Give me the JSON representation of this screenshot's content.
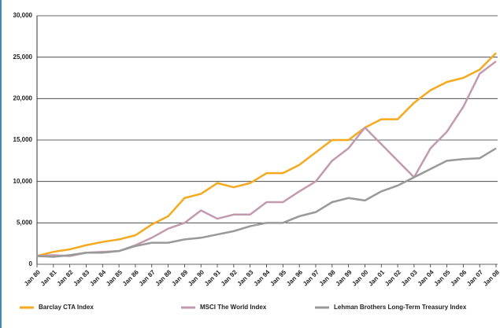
{
  "chart_data": {
    "type": "line",
    "categories": [
      "Jan 80",
      "Jan 81",
      "Jan 82",
      "Jan 83",
      "Jan 84",
      "Jan 85",
      "Jan 86",
      "Jan 87",
      "Jan 88",
      "Jan 89",
      "Jan 90",
      "Jan 91",
      "Jan 92",
      "Jan 93",
      "Jan 94",
      "Jan 95",
      "Jan 96",
      "Jan 97",
      "Jan 98",
      "Jan 99",
      "Jan 00",
      "Jan 01",
      "Jan 02",
      "Jan 03",
      "Jan 04",
      "Jan 05",
      "Jan 06",
      "Jan 07",
      "Jan 08"
    ],
    "series": [
      {
        "name": "Barclay CTA Index",
        "color": "#f5a91f",
        "values": [
          1000,
          1500,
          1800,
          2300,
          2700,
          3000,
          3500,
          4800,
          5800,
          8000,
          8500,
          9800,
          9300,
          9800,
          11000,
          11000,
          12000,
          13500,
          15000,
          15000,
          16500,
          17500,
          17500,
          19500,
          21000,
          22000,
          22500,
          23500,
          25500
        ]
      },
      {
        "name": "MSCI The World Index",
        "color": "#c29aae",
        "values": [
          1000,
          1100,
          1000,
          1400,
          1500,
          1600,
          2300,
          3200,
          4300,
          5000,
          6500,
          5500,
          6000,
          6000,
          7500,
          7500,
          8800,
          10000,
          12500,
          14000,
          16500,
          14500,
          12500,
          10500,
          14000,
          16000,
          19000,
          23000,
          24500
        ]
      },
      {
        "name": "Lehman Brothers Long-Term Treasury Index",
        "color": "#999999",
        "values": [
          1000,
          900,
          1100,
          1400,
          1400,
          1600,
          2200,
          2600,
          2600,
          3000,
          3200,
          3600,
          4000,
          4600,
          5000,
          5000,
          5800,
          6300,
          7500,
          8000,
          7700,
          8800,
          9500,
          10500,
          11500,
          12500,
          12700,
          12800,
          14000
        ]
      }
    ],
    "ylim": [
      0,
      30000
    ],
    "yticks": [
      0,
      {
        "value": 5000,
        "label": "5,000"
      },
      {
        "value": 10000,
        "label": "10,000"
      },
      {
        "value": 15000,
        "label": "15,000"
      },
      {
        "value": 20000,
        "label": "20,000"
      },
      {
        "value": 25000,
        "label": "25,000"
      },
      {
        "value": 30000,
        "label": "30,000"
      }
    ],
    "grid": true,
    "legend": "bottom"
  }
}
